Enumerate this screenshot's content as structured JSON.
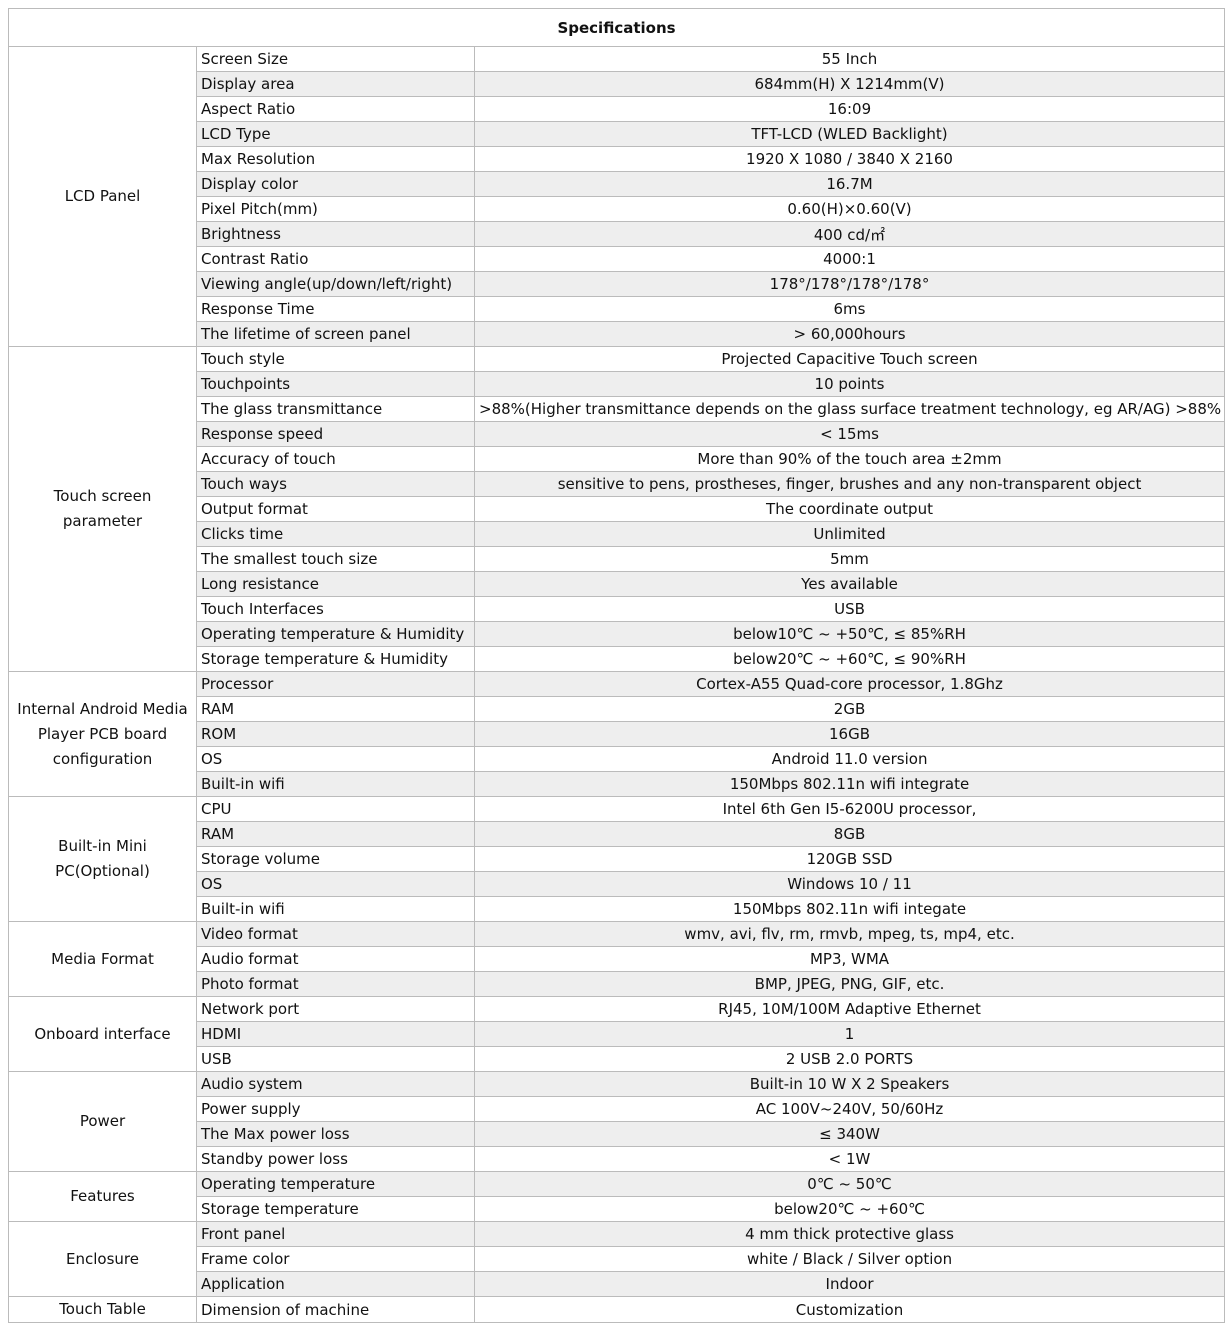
{
  "title": "Specifications",
  "groups": [
    {
      "label": "LCD Panel",
      "rows": [
        [
          "Screen Size",
          "55 Inch"
        ],
        [
          "Display area",
          "684mm(H) X 1214mm(V)"
        ],
        [
          "Aspect Ratio",
          "16:09"
        ],
        [
          "LCD Type",
          "TFT-LCD (WLED Backlight)"
        ],
        [
          "Max Resolution",
          "1920 X 1080 / 3840 X 2160"
        ],
        [
          "Display color",
          "16.7M"
        ],
        [
          "Pixel Pitch(mm)",
          "0.60(H)×0.60(V)"
        ],
        [
          "Brightness",
          "400 cd/㎡"
        ],
        [
          "Contrast Ratio",
          "4000:1"
        ],
        [
          "Viewing angle(up/down/left/right)",
          "178°/178°/178°/178°"
        ],
        [
          "Response Time",
          "6ms"
        ],
        [
          "The lifetime of screen panel",
          "> 60,000hours"
        ]
      ]
    },
    {
      "label": "Touch screen parameter",
      "rows": [
        [
          "Touch style",
          "Projected Capacitive Touch screen"
        ],
        [
          "Touchpoints",
          "10 points"
        ],
        [
          "The glass transmittance",
          ">88%(Higher transmittance depends on the glass surface treatment technology, eg AR/AG) >88%"
        ],
        [
          "Response speed",
          "< 15ms"
        ],
        [
          "Accuracy of touch",
          "More than 90% of the touch area ±2mm"
        ],
        [
          "Touch ways",
          "sensitive to pens, prostheses, finger, brushes and any non-transparent object"
        ],
        [
          "Output format",
          "The coordinate output"
        ],
        [
          "Clicks time",
          "Unlimited"
        ],
        [
          "The smallest touch size",
          "5mm"
        ],
        [
          "Long resistance",
          "Yes available"
        ],
        [
          "Touch Interfaces",
          "USB"
        ],
        [
          "Operating temperature & Humidity",
          "below10℃ ~ +50℃, ≤ 85%RH"
        ],
        [
          "Storage temperature & Humidity",
          "below20℃ ~ +60℃, ≤ 90%RH"
        ]
      ]
    },
    {
      "label": "Internal Android Media Player  PCB board configuration",
      "rows": [
        [
          "Processor",
          "Cortex-A55 Quad-core processor, 1.8Ghz"
        ],
        [
          "RAM",
          "2GB"
        ],
        [
          "ROM",
          "16GB"
        ],
        [
          "OS",
          "Android 11.0 version"
        ],
        [
          "Built-in wifi",
          "150Mbps 802.11n wifi integrate"
        ]
      ]
    },
    {
      "label": "Built-in Mini PC(Optional)",
      "rows": [
        [
          "CPU",
          "Intel 6th Gen I5-6200U processor,"
        ],
        [
          "RAM",
          "8GB"
        ],
        [
          "Storage volume",
          "120GB SSD"
        ],
        [
          "OS",
          "Windows 10 / 11"
        ],
        [
          "Built-in wifi",
          "150Mbps 802.11n wifi integate"
        ]
      ]
    },
    {
      "label": "Media Format",
      "rows": [
        [
          "Video format",
          "wmv, avi, flv, rm, rmvb, mpeg, ts, mp4, etc."
        ],
        [
          "Audio format",
          "MP3, WMA"
        ],
        [
          "Photo format",
          "BMP, JPEG, PNG, GIF, etc."
        ]
      ]
    },
    {
      "label": "Onboard interface",
      "rows": [
        [
          "Network port",
          "RJ45, 10M/100M Adaptive Ethernet"
        ],
        [
          "HDMI",
          "1"
        ],
        [
          "USB",
          "2 USB 2.0 PORTS"
        ]
      ]
    },
    {
      "label": "Power",
      "rows": [
        [
          "Audio system",
          "Built-in 10 W  X 2 Speakers"
        ],
        [
          "Power supply",
          "AC 100V~240V, 50/60Hz"
        ],
        [
          "The Max power loss",
          "≤ 340W"
        ],
        [
          "Standby power loss",
          "< 1W"
        ]
      ]
    },
    {
      "label": "Features",
      "rows": [
        [
          "Operating temperature",
          "0℃ ~ 50℃"
        ],
        [
          "Storage temperature",
          "below20℃ ~ +60℃"
        ]
      ]
    },
    {
      "label": "Enclosure",
      "rows": [
        [
          "Front panel",
          "4 mm thick protective glass"
        ],
        [
          "Frame color",
          "white / Black / Silver option"
        ],
        [
          "Application",
          "Indoor"
        ]
      ]
    },
    {
      "label": "Touch Table",
      "rows": [
        [
          "Dimension of machine",
          "Customization"
        ]
      ]
    }
  ]
}
